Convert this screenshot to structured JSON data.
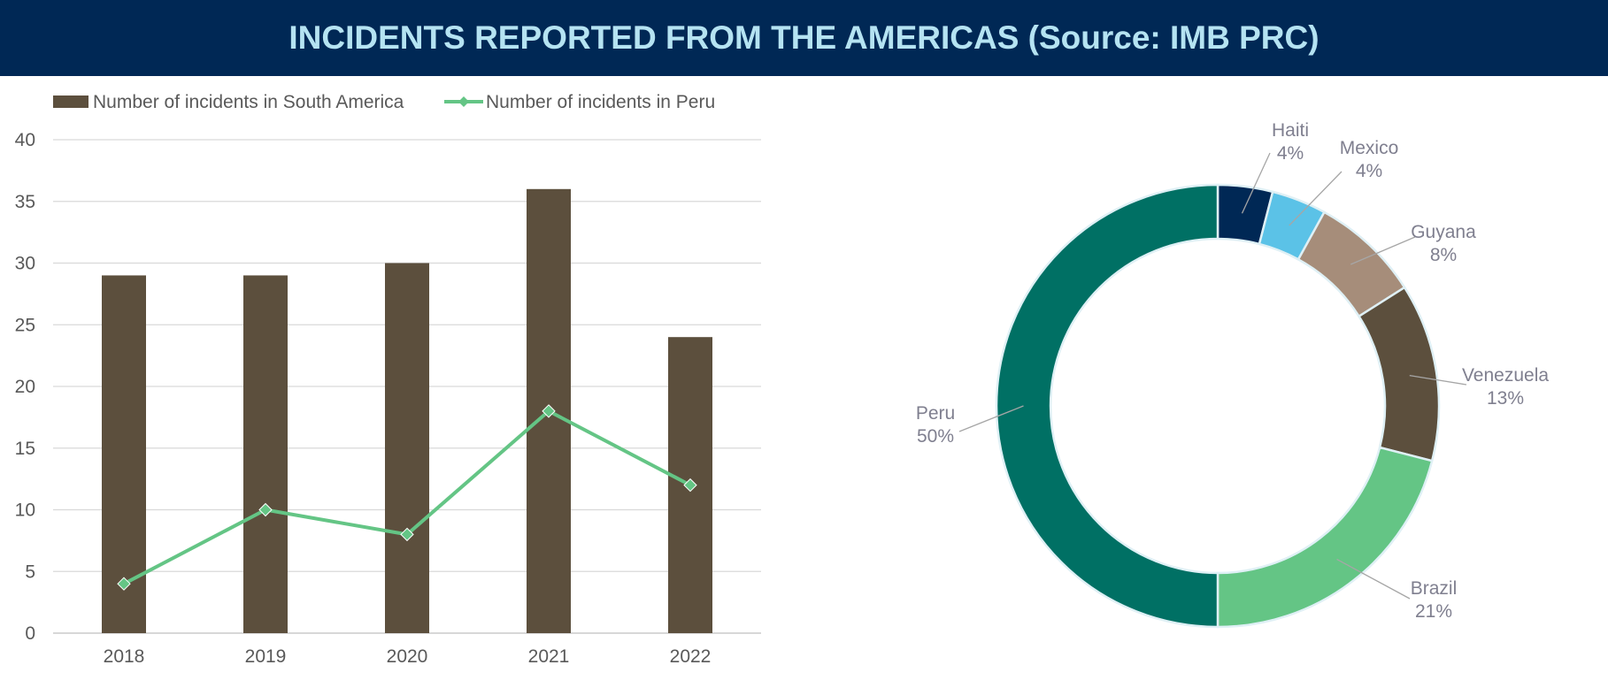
{
  "header": {
    "title": "INCIDENTS REPORTED FROM THE AMERICAS (Source: IMB PRC)"
  },
  "colors": {
    "header_bg": "#002855",
    "header_text": "#b5e3f2",
    "bar": "#5c4f3d",
    "line": "#64c585",
    "grid": "#d9d9d9",
    "axis_text": "#595959",
    "label_text": "#7f7f8f"
  },
  "chart_data": [
    {
      "type": "bar",
      "title": "",
      "xlabel": "",
      "ylabel": "",
      "categories": [
        "2018",
        "2019",
        "2020",
        "2021",
        "2022"
      ],
      "ylim": [
        0,
        40
      ],
      "yticks": [
        "0",
        "5",
        "10",
        "15",
        "20",
        "25",
        "30",
        "35",
        "40"
      ],
      "grid": true,
      "legend_position": "top-left",
      "series": [
        {
          "name": "Number of incidents in South America",
          "type": "bar",
          "color": "#5c4f3d",
          "values": [
            29,
            29,
            30,
            36,
            24
          ]
        },
        {
          "name": "Number of incidents in Peru",
          "type": "line",
          "marker": "diamond",
          "color": "#64c585",
          "values": [
            4,
            10,
            8,
            18,
            12
          ]
        }
      ]
    },
    {
      "type": "pie",
      "style": "donut",
      "title": "",
      "slices": [
        {
          "label": "Haiti",
          "value": 4,
          "pct": "4%",
          "color": "#002855"
        },
        {
          "label": "Mexico",
          "value": 4,
          "pct": "4%",
          "color": "#5bc2e7"
        },
        {
          "label": "Guyana",
          "value": 8,
          "pct": "8%",
          "color": "#a68d7a"
        },
        {
          "label": "Venezuela",
          "value": 13,
          "pct": "13%",
          "color": "#5c4f3d"
        },
        {
          "label": "Brazil",
          "value": 21,
          "pct": "21%",
          "color": "#64c585"
        },
        {
          "label": "Peru",
          "value": 50,
          "pct": "50%",
          "color": "#007064"
        }
      ]
    }
  ]
}
